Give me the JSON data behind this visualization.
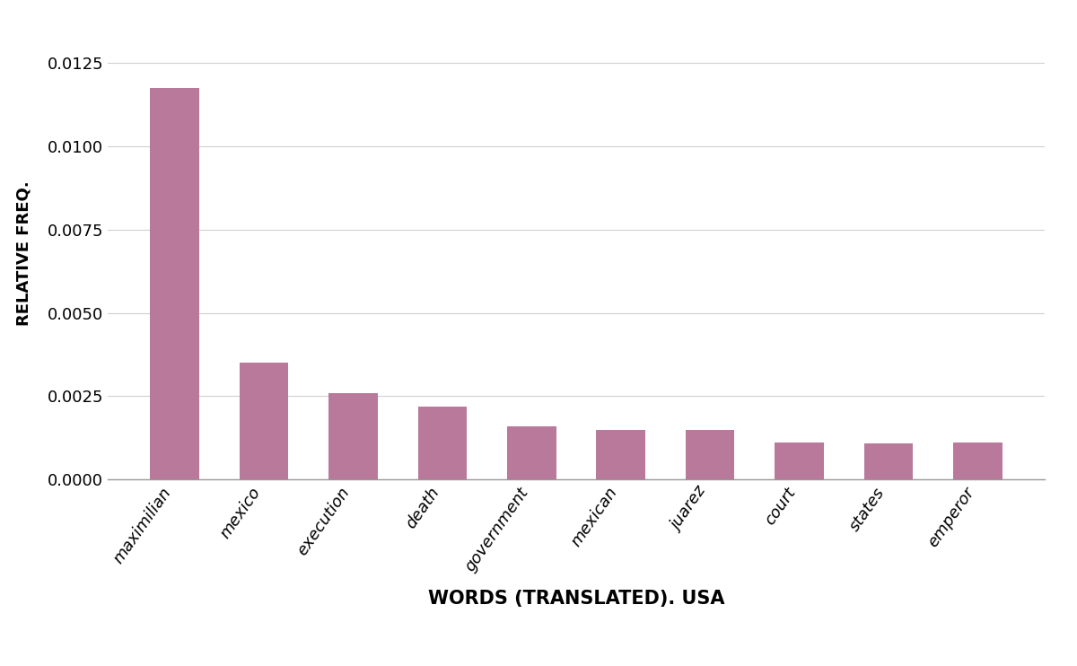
{
  "categories": [
    "maximilian",
    "mexico",
    "execution",
    "death",
    "government",
    "mexican",
    "juarez",
    "court",
    "states",
    "emperor"
  ],
  "values": [
    0.01175,
    0.0035,
    0.0026,
    0.0022,
    0.0016,
    0.0015,
    0.0015,
    0.0011,
    0.00108,
    0.0011
  ],
  "bar_color": "#b8799a",
  "xlabel": "WORDS (TRANSLATED). USA",
  "ylabel": "RELATIVE FREQ.",
  "xlabel_fontsize": 15,
  "ylabel_fontsize": 13,
  "background_color": "#ffffff",
  "ylim": [
    0,
    0.0136
  ],
  "yticks": [
    0.0,
    0.0025,
    0.005,
    0.0075,
    0.01,
    0.0125
  ],
  "grid_color": "#d0d0d0",
  "tick_label_fontsize": 13,
  "xtick_label_fontsize": 13,
  "bar_width": 0.55
}
